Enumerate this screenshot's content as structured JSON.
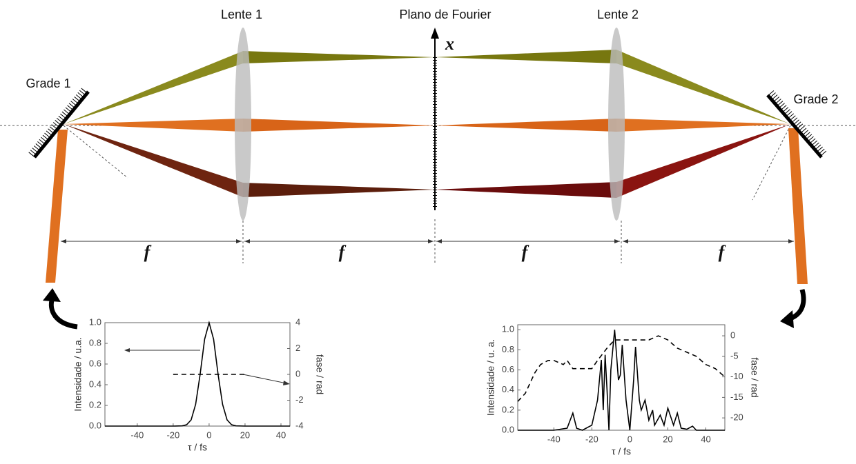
{
  "labels": {
    "lens1": "Lente 1",
    "fourier": "Plano de Fourier",
    "lens2": "Lente 2",
    "grating1": "Grade 1",
    "grating2": "Grade 2",
    "axis": "x",
    "focal": [
      "f",
      "f",
      "f",
      "f"
    ]
  },
  "insets": [
    {
      "type": "line",
      "xlabel": "τ / fs",
      "ylabel": "Intensidade / u.a.",
      "y2label": "fase / rad",
      "xlim": [
        -58,
        45
      ],
      "xticks": [
        -40,
        -20,
        0,
        20,
        40
      ],
      "ylim": [
        0,
        1.0
      ],
      "yticks": [
        {
          "value": 0,
          "label": "0.0"
        },
        {
          "value": 0.2,
          "label": "0.2"
        },
        {
          "value": 0.4,
          "label": "0.4"
        },
        {
          "value": 0.6,
          "label": "0.6"
        },
        {
          "value": 0.8,
          "label": "0.8"
        },
        {
          "value": 1.0,
          "label": "1.0"
        }
      ],
      "y2lim": [
        -4,
        4
      ],
      "y2ticks": [
        -4,
        -2,
        0,
        2,
        4
      ],
      "series": [
        {
          "color": "#000000",
          "x": [
            -58,
            -20,
            -15,
            -12.5,
            -10,
            -7.5,
            -5,
            -2.5,
            0,
            2.5,
            5,
            7.5,
            10,
            12.5,
            15,
            20,
            45
          ],
          "values": [
            0,
            0,
            0.002,
            0.013,
            0.06,
            0.21,
            0.5,
            0.84,
            1.0,
            0.84,
            0.5,
            0.21,
            0.06,
            0.013,
            0.002,
            0,
            0
          ]
        },
        {
          "color": "#000000",
          "axis": "y2",
          "dashed": true,
          "x": [
            -20,
            20
          ],
          "values": [
            0,
            0
          ]
        }
      ]
    },
    {
      "type": "line",
      "xlabel": "τ / fs",
      "ylabel": "Intensidade / u. a.",
      "y2label": "fase / rad",
      "xlim": [
        -59,
        50
      ],
      "xticks": [
        -40,
        -20,
        0,
        20,
        40
      ],
      "ylim": [
        0,
        1.05
      ],
      "yticks": [
        {
          "value": 0,
          "label": "0.0"
        },
        {
          "value": 0.2,
          "label": "0.2"
        },
        {
          "value": 0.4,
          "label": "0.4"
        },
        {
          "value": 0.6,
          "label": "0.6"
        },
        {
          "value": 0.8,
          "label": "0.8"
        },
        {
          "value": 1.0,
          "label": "1.0"
        }
      ],
      "y2lim": [
        -23,
        2.7
      ],
      "y2ticks": [
        0,
        -5,
        -10,
        -15,
        -20
      ],
      "series": [
        {
          "color": "#000000",
          "x": [
            -59,
            -40,
            -33,
            -30,
            -28,
            -25,
            -20,
            -17,
            -15,
            -14,
            -13,
            -12,
            -11,
            -10,
            -8,
            -6,
            -5,
            -4,
            -2,
            0,
            2,
            3,
            5,
            6,
            8,
            10,
            12,
            13,
            16,
            18,
            20,
            23,
            25,
            27,
            30,
            33,
            35,
            50
          ],
          "values": [
            0,
            0,
            0.02,
            0.17,
            0.02,
            0,
            0.05,
            0.3,
            0.7,
            0.2,
            0.75,
            0.4,
            0,
            0.6,
            1.0,
            0.5,
            0.55,
            0.85,
            0.3,
            0,
            0.5,
            0.83,
            0.3,
            0.2,
            0.3,
            0.1,
            0.2,
            0.05,
            0.15,
            0.05,
            0.22,
            0.05,
            0.17,
            0.02,
            0.01,
            0.04,
            0,
            0
          ]
        },
        {
          "color": "#000000",
          "axis": "y2",
          "dashed": true,
          "x": [
            -59,
            -55,
            -50,
            -47,
            -43,
            -40,
            -35,
            -33,
            -30,
            -25,
            -20,
            -17,
            -12,
            -10,
            -8,
            -5,
            0,
            5,
            10,
            15,
            20,
            25,
            30,
            35,
            40,
            45,
            50
          ],
          "values": [
            -16,
            -14,
            -9,
            -7,
            -6,
            -6,
            -7,
            -6,
            -8,
            -8,
            -8,
            -6,
            -3,
            -2,
            -1,
            -1,
            -1,
            -1,
            -1,
            0,
            -1,
            -3,
            -4,
            -5,
            -7,
            -8,
            -10
          ]
        }
      ]
    }
  ]
}
